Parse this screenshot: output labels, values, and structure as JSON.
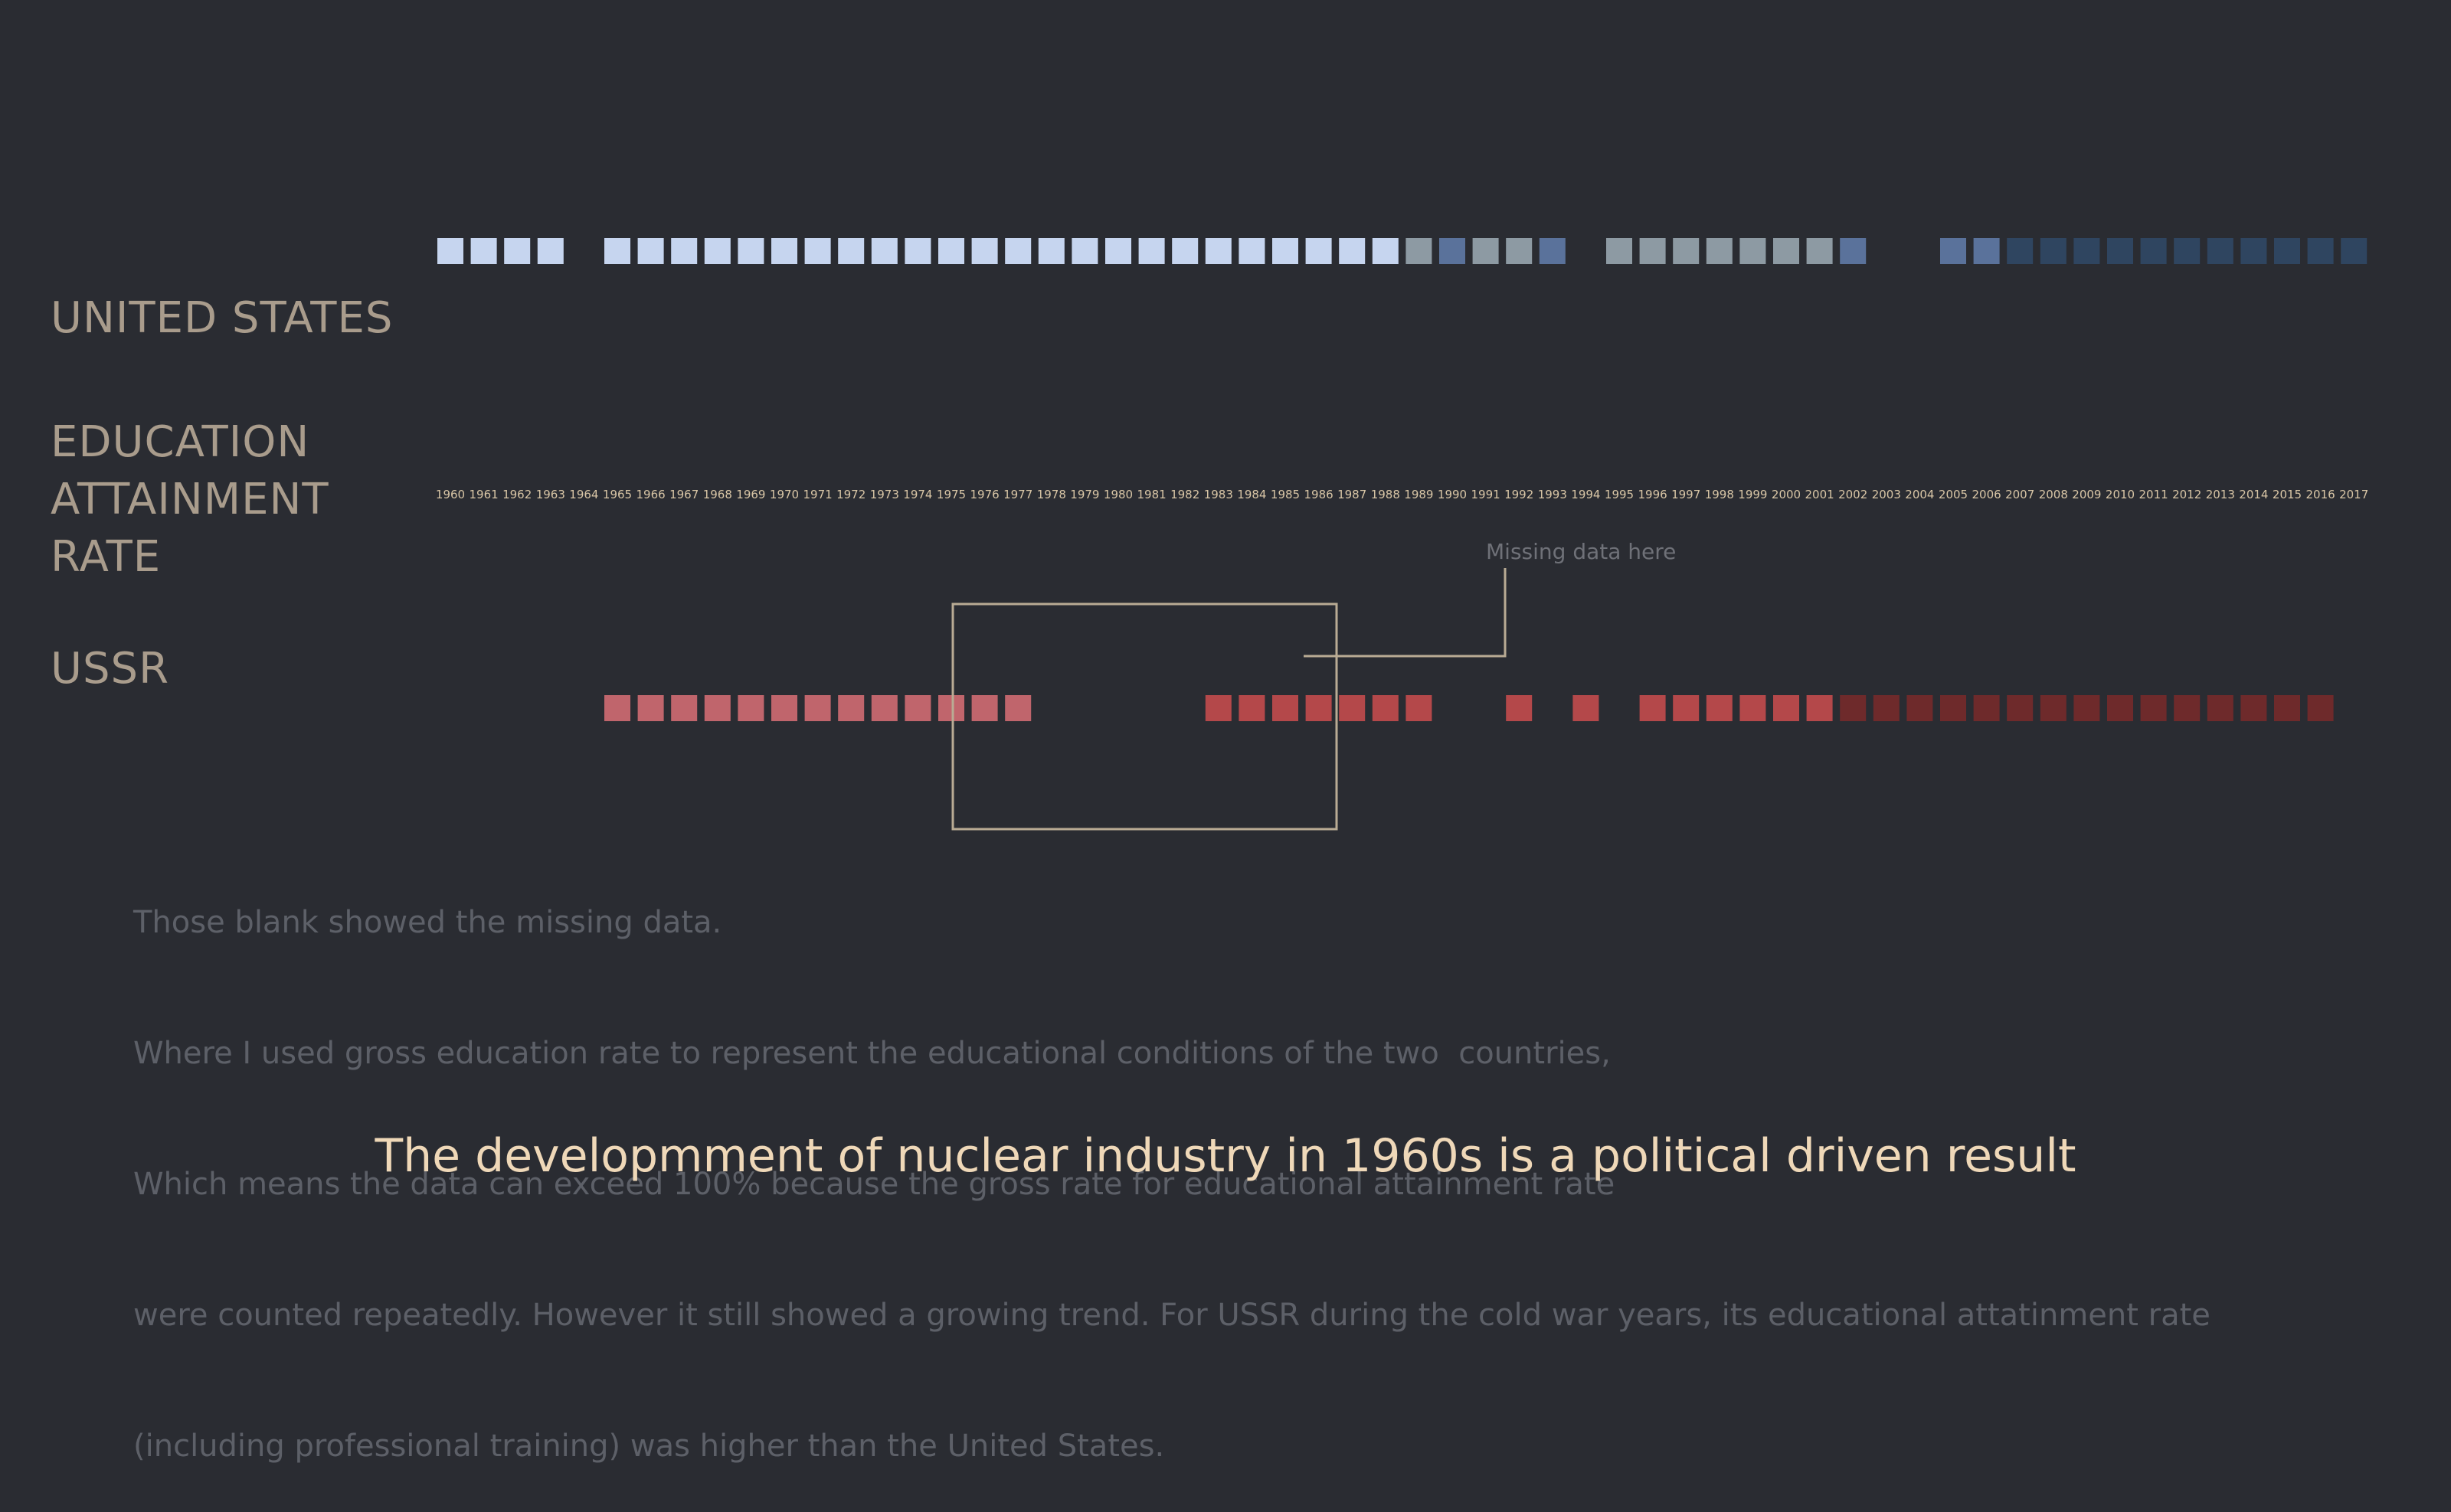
{
  "labels": {
    "united_states": "UNITED STATES",
    "metric": [
      "EDUCATION",
      "ATTAINMENT",
      "RATE"
    ],
    "ussr": "USSR"
  },
  "annotation": {
    "text": "Missing data here"
  },
  "note": [
    "Those blank showed the missing data.",
    "Where I used gross education rate to represent the educational conditions of the two  countries,",
    "Which means the data can exceed 100% because the gross rate for educational attainment rate",
    "were counted repeatedly. However it still showed a growing trend. For USSR during the cold war years, its educational attatinment rate",
    "(including professional training) was higher than the United States."
  ],
  "headline": "The  developmment of nuclear industry in 1960s is a political driven result",
  "colors": {
    "background": "#2a2c32",
    "us_high": "#c6d5ef",
    "us_gray": "#8d9aa3",
    "us_blue": "#5a729b",
    "us_dark": "#2f4560",
    "ussr_bright": "#c0656c",
    "ussr_mid": "#b4484a",
    "ussr_dark": "#6e2a2b",
    "label": "#a99c8c",
    "year": "#d9c6a6",
    "headline": "#efd8b8"
  },
  "chart_data": {
    "type": "heatmap",
    "x": [
      1960,
      1961,
      1962,
      1963,
      1964,
      1965,
      1966,
      1967,
      1968,
      1969,
      1970,
      1971,
      1972,
      1973,
      1974,
      1975,
      1976,
      1977,
      1978,
      1979,
      1980,
      1981,
      1982,
      1983,
      1984,
      1985,
      1986,
      1987,
      1988,
      1989,
      1990,
      1991,
      1992,
      1993,
      1994,
      1995,
      1996,
      1997,
      1998,
      1999,
      2000,
      2001,
      2002,
      2003,
      2004,
      2005,
      2006,
      2007,
      2008,
      2009,
      2010,
      2011,
      2012,
      2013,
      2014,
      2015,
      2016,
      2017
    ],
    "series": [
      {
        "name": "UNITED STATES",
        "color_classes": [
          "H",
          "H",
          "H",
          "H",
          null,
          "H",
          "H",
          "H",
          "H",
          "H",
          "H",
          "H",
          "H",
          "H",
          "H",
          "H",
          "H",
          "H",
          "H",
          "H",
          "H",
          "H",
          "H",
          "H",
          "H",
          "H",
          "H",
          "H",
          "H",
          "G",
          "B",
          "G",
          "G",
          "B",
          null,
          "G",
          "G",
          "G",
          "G",
          "G",
          "G",
          "G",
          "B",
          null,
          null,
          "B",
          "B",
          "D",
          "D",
          "D",
          "D",
          "D",
          "D",
          "D",
          "D",
          "D",
          "D",
          "D"
        ]
      },
      {
        "name": "USSR",
        "color_classes": [
          null,
          null,
          null,
          null,
          null,
          "R",
          "R",
          "R",
          "R",
          "R",
          "R",
          "R",
          "R",
          "R",
          "R",
          "R",
          "R",
          "R",
          null,
          null,
          null,
          null,
          null,
          "M",
          "M",
          "M",
          "M",
          "M",
          "M",
          "M",
          null,
          null,
          "M",
          null,
          "M",
          null,
          "M",
          "M",
          "M",
          "M",
          "M",
          "M",
          "K",
          "K",
          "K",
          "K",
          "K",
          "K",
          "K",
          "K",
          "K",
          "K",
          "K",
          "K",
          "K",
          "K",
          "K",
          null
        ]
      }
    ]
  }
}
